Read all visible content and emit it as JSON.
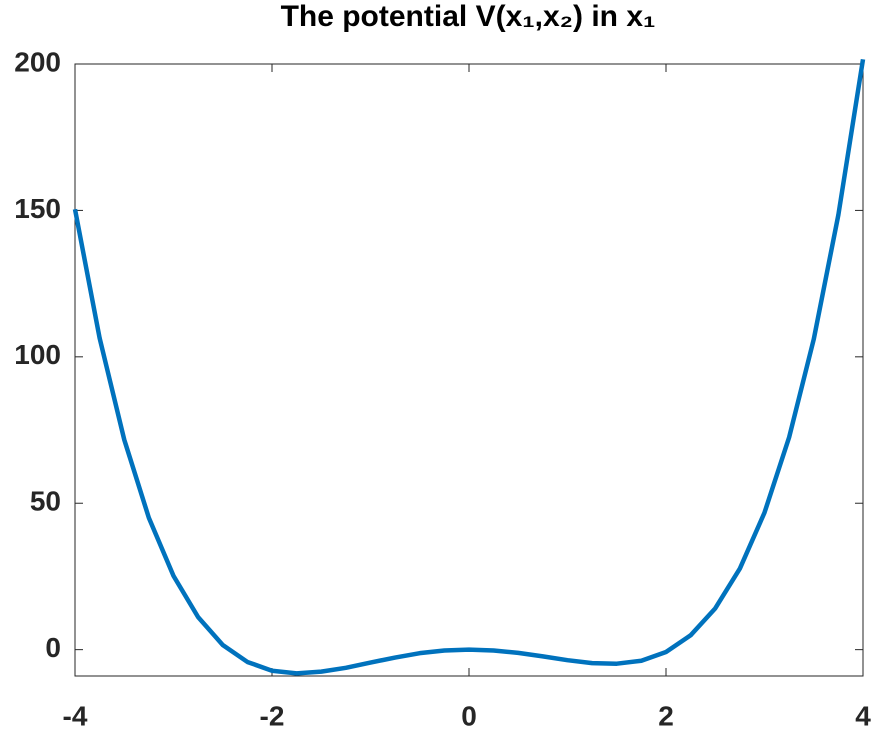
{
  "chart_data": {
    "type": "line",
    "title": "The potential V(x₁,x₂) in x₁",
    "x": [
      -4,
      -3.75,
      -3.5,
      -3.25,
      -3,
      -2.75,
      -2.5,
      -2.25,
      -2,
      -1.75,
      -1.5,
      -1.25,
      -1,
      -0.75,
      -0.5,
      -0.25,
      0,
      0.25,
      0.5,
      0.75,
      1,
      1.25,
      1.5,
      1.75,
      2,
      2.25,
      2.5,
      2.75,
      3,
      3.25,
      3.5,
      3.75,
      4
    ],
    "series": [
      {
        "color": "#0072bd",
        "values": [
          150.4,
          106.4,
          71.7,
          45.0,
          25.2,
          11.1,
          1.6,
          -4.2,
          -7.2,
          -8.1,
          -7.5,
          -6.2,
          -4.4,
          -2.7,
          -1.2,
          -0.3,
          0,
          -0.3,
          -1.1,
          -2.3,
          -3.6,
          -4.6,
          -4.8,
          -3.8,
          -0.8,
          4.9,
          14.1,
          27.7,
          46.8,
          72.5,
          106.0,
          148.5,
          201.6
        ]
      }
    ],
    "xlim": [
      -4,
      4
    ],
    "xticks": [
      -4,
      -2,
      0,
      2,
      4
    ],
    "ylim": [
      -9,
      200
    ],
    "yticks": [
      0,
      50,
      100,
      150,
      200
    ]
  }
}
